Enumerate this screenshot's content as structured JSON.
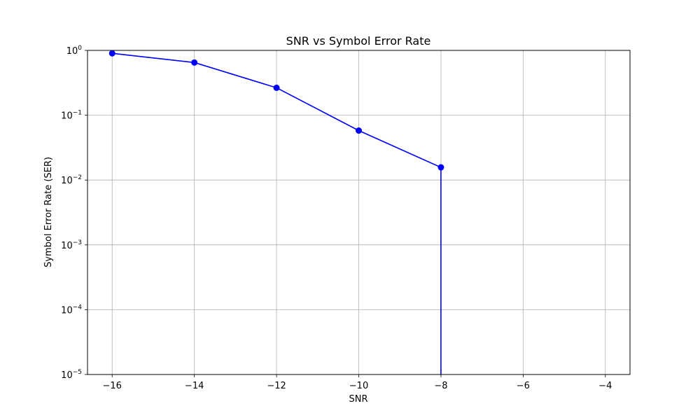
{
  "chart_data": {
    "type": "line",
    "title": "SNR vs Symbol Error Rate",
    "xlabel": "SNR",
    "ylabel": "Symbol Error Rate (SER)",
    "xlim": [
      -16.6,
      -3.4
    ],
    "ylim": [
      1e-05,
      1
    ],
    "yscale": "log",
    "grid": true,
    "xticks": [
      -16,
      -14,
      -12,
      -10,
      -8,
      -6,
      -4
    ],
    "xtick_labels": [
      "−16",
      "−14",
      "−12",
      "−10",
      "−8",
      "−6",
      "−4"
    ],
    "yticks": [
      {
        "value": 1,
        "base": "10",
        "exp": "0"
      },
      {
        "value": 0.1,
        "base": "10",
        "exp": "−1"
      },
      {
        "value": 0.01,
        "base": "10",
        "exp": "−2"
      },
      {
        "value": 0.001,
        "base": "10",
        "exp": "−3"
      },
      {
        "value": 0.0001,
        "base": "10",
        "exp": "−4"
      },
      {
        "value": 1e-05,
        "base": "10",
        "exp": "−5"
      }
    ],
    "series": [
      {
        "color": "#0000ff",
        "marker": "circle",
        "x": [
          -16,
          -14,
          -12,
          -10,
          -8,
          -6,
          -4
        ],
        "y": [
          0.9,
          0.65,
          0.265,
          0.058,
          0.0157,
          0,
          0
        ]
      }
    ]
  }
}
